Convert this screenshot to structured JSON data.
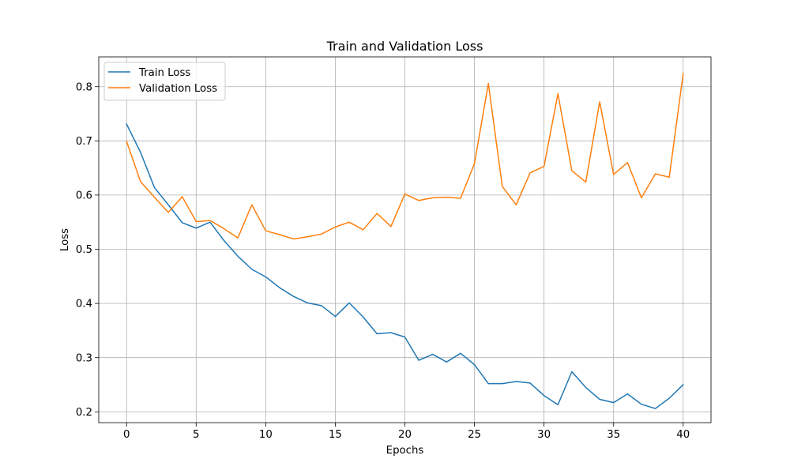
{
  "chart_data": {
    "type": "line",
    "title": "Train and Validation Loss",
    "xlabel": "Epochs",
    "ylabel": "Loss",
    "xlim": [
      -2,
      42
    ],
    "ylim": [
      0.18,
      0.855
    ],
    "xticks": [
      0,
      5,
      10,
      15,
      20,
      25,
      30,
      35,
      40
    ],
    "yticks": [
      0.2,
      0.3,
      0.4,
      0.5,
      0.6,
      0.7,
      0.8
    ],
    "grid": true,
    "legend_position": "top-left",
    "x": [
      0,
      1,
      2,
      3,
      4,
      5,
      6,
      7,
      8,
      9,
      10,
      11,
      12,
      13,
      14,
      15,
      16,
      17,
      18,
      19,
      20,
      21,
      22,
      23,
      24,
      25,
      26,
      27,
      28,
      29,
      30,
      31,
      32,
      33,
      34,
      35,
      36,
      37,
      38,
      39,
      40
    ],
    "series": [
      {
        "name": "Train Loss",
        "color": "#1f77b4",
        "values": [
          0.731,
          0.679,
          0.614,
          0.582,
          0.549,
          0.539,
          0.55,
          0.516,
          0.487,
          0.463,
          0.449,
          0.429,
          0.413,
          0.401,
          0.396,
          0.376,
          0.401,
          0.375,
          0.344,
          0.346,
          0.338,
          0.295,
          0.306,
          0.292,
          0.308,
          0.287,
          0.252,
          0.252,
          0.256,
          0.253,
          0.23,
          0.213,
          0.274,
          0.245,
          0.223,
          0.217,
          0.233,
          0.214,
          0.206,
          0.225,
          0.25
        ]
      },
      {
        "name": "Validation Loss",
        "color": "#ff7f0e",
        "values": [
          0.699,
          0.625,
          0.596,
          0.568,
          0.597,
          0.551,
          0.553,
          0.538,
          0.521,
          0.582,
          0.534,
          0.527,
          0.519,
          0.523,
          0.528,
          0.541,
          0.55,
          0.536,
          0.566,
          0.542,
          0.602,
          0.59,
          0.595,
          0.596,
          0.594,
          0.658,
          0.806,
          0.616,
          0.582,
          0.641,
          0.653,
          0.787,
          0.645,
          0.624,
          0.772,
          0.638,
          0.66,
          0.595,
          0.639,
          0.633,
          0.824
        ]
      }
    ]
  }
}
